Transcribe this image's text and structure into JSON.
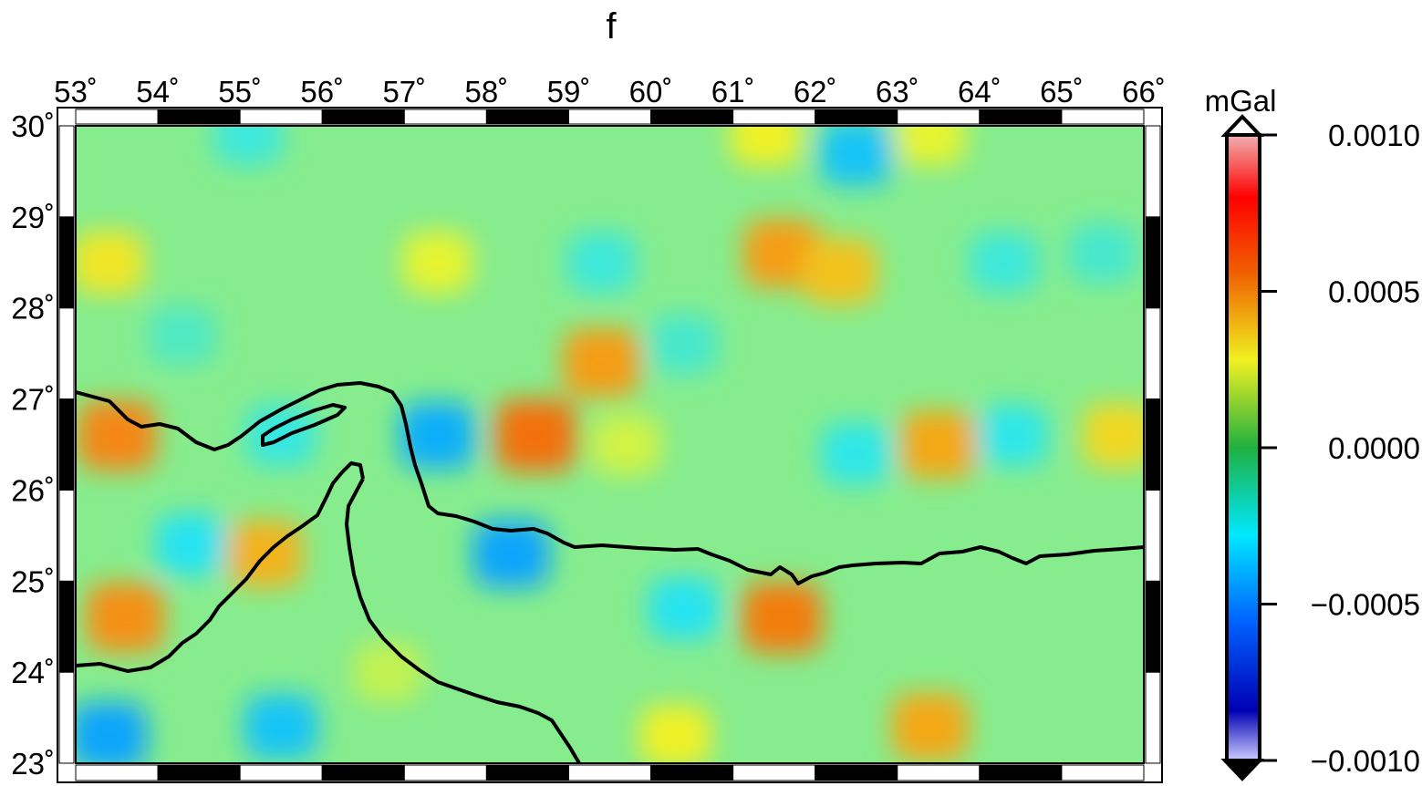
{
  "title": "f",
  "map": {
    "lon_labels": [
      "53˚",
      "54˚",
      "55˚",
      "56˚",
      "57˚",
      "58˚",
      "59˚",
      "60˚",
      "61˚",
      "62˚",
      "63˚",
      "64˚",
      "65˚",
      "66˚"
    ],
    "lat_labels": [
      "30˚",
      "29˚",
      "28˚",
      "27˚",
      "26˚",
      "25˚",
      "24˚",
      "23˚"
    ],
    "lon_range": [
      53,
      66
    ],
    "lat_range": [
      23,
      30
    ],
    "field_description_colors": {
      "background": "#7ef0a0",
      "high": "#f05a10",
      "low": "#10a0f0"
    },
    "anomalies": [
      {
        "lon": 53.4,
        "lat": 28.5,
        "value": 0.00028
      },
      {
        "lon": 53.5,
        "lat": 26.6,
        "value": 0.00055
      },
      {
        "lon": 53.6,
        "lat": 24.6,
        "value": 0.00052
      },
      {
        "lon": 53.4,
        "lat": 23.3,
        "value": -0.00045
      },
      {
        "lon": 54.4,
        "lat": 25.4,
        "value": -0.00025
      },
      {
        "lon": 55.3,
        "lat": 25.3,
        "value": 0.00042
      },
      {
        "lon": 55.5,
        "lat": 23.4,
        "value": -0.00035
      },
      {
        "lon": 55.1,
        "lat": 29.9,
        "value": -0.00018
      },
      {
        "lon": 55.5,
        "lat": 26.6,
        "value": -0.0002
      },
      {
        "lon": 57.4,
        "lat": 28.5,
        "value": 0.00022
      },
      {
        "lon": 57.4,
        "lat": 26.6,
        "value": -0.00042
      },
      {
        "lon": 58.3,
        "lat": 25.3,
        "value": -0.00045
      },
      {
        "lon": 58.6,
        "lat": 26.6,
        "value": 0.00062
      },
      {
        "lon": 59.4,
        "lat": 27.4,
        "value": 0.00048
      },
      {
        "lon": 59.4,
        "lat": 28.5,
        "value": -0.00018
      },
      {
        "lon": 59.7,
        "lat": 26.5,
        "value": 0.00018
      },
      {
        "lon": 60.4,
        "lat": 24.7,
        "value": -0.00025
      },
      {
        "lon": 60.3,
        "lat": 23.3,
        "value": 0.00025
      },
      {
        "lon": 61.6,
        "lat": 24.6,
        "value": 0.00058
      },
      {
        "lon": 61.6,
        "lat": 28.6,
        "value": 0.00048
      },
      {
        "lon": 61.4,
        "lat": 29.9,
        "value": 0.00025
      },
      {
        "lon": 62.3,
        "lat": 28.4,
        "value": 0.00038
      },
      {
        "lon": 62.5,
        "lat": 29.7,
        "value": -0.00035
      },
      {
        "lon": 62.5,
        "lat": 26.4,
        "value": -0.00022
      },
      {
        "lon": 63.5,
        "lat": 26.5,
        "value": 0.00045
      },
      {
        "lon": 63.4,
        "lat": 29.9,
        "value": 0.00022
      },
      {
        "lon": 63.4,
        "lat": 23.4,
        "value": 0.00045
      },
      {
        "lon": 64.4,
        "lat": 26.6,
        "value": -0.00022
      },
      {
        "lon": 64.3,
        "lat": 28.5,
        "value": -0.00018
      },
      {
        "lon": 65.7,
        "lat": 26.6,
        "value": 0.00032
      },
      {
        "lon": 65.5,
        "lat": 28.6,
        "value": -0.00015
      },
      {
        "lon": 56.8,
        "lat": 24.0,
        "value": 0.00015
      },
      {
        "lon": 54.3,
        "lat": 27.7,
        "value": -0.00012
      },
      {
        "lon": 60.4,
        "lat": 27.6,
        "value": -0.00015
      }
    ]
  },
  "colorbar": {
    "unit": "mGal",
    "tick_labels": [
      "0.0010",
      "0.0005",
      "0.0000",
      "−0.0005",
      "−0.0010"
    ],
    "range": [
      -0.001,
      0.001
    ],
    "colors": [
      "#ffffff",
      "#1e1eff",
      "#00a0ff",
      "#2af0f0",
      "#26c84c",
      "#f0f020",
      "#f07000",
      "#ff1e00",
      "#a01e1e",
      "#ffffff"
    ]
  }
}
